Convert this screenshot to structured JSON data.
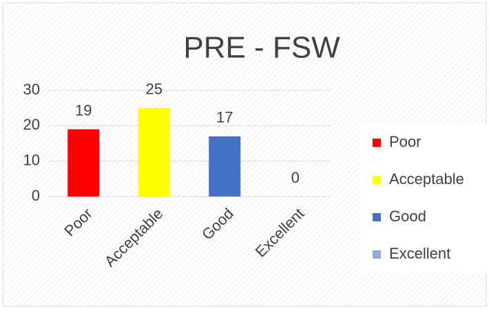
{
  "chart_data": {
    "type": "bar",
    "title": "PRE - FSW",
    "categories": [
      "Poor",
      "Acceptable",
      "Good",
      "Excellent"
    ],
    "values": [
      19,
      25,
      17,
      0
    ],
    "colors": [
      "#ff0000",
      "#ffff00",
      "#4472c4",
      "#8faadc"
    ],
    "ylim": [
      0,
      30
    ],
    "yticks": [
      0,
      10,
      20,
      30
    ],
    "grid": true,
    "legend": "right"
  }
}
